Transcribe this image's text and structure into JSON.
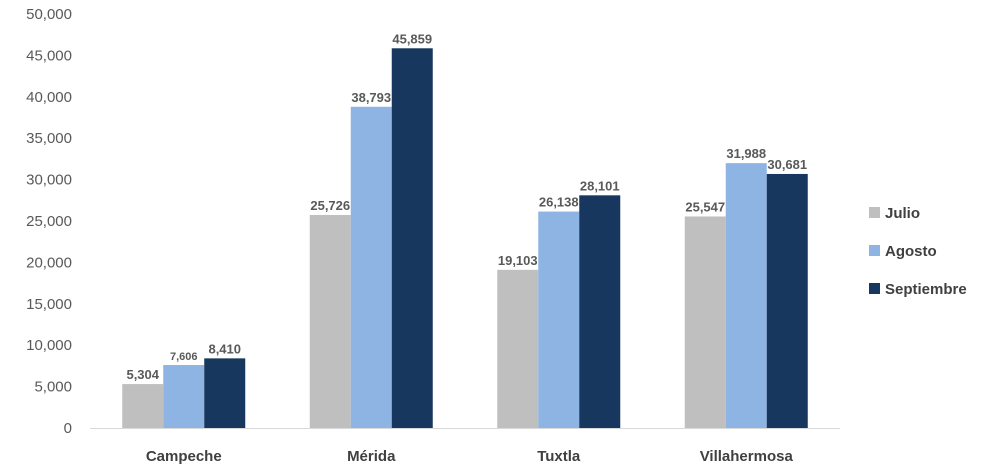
{
  "chart_data": {
    "type": "bar",
    "title": "",
    "xlabel": "",
    "ylabel": "",
    "categories": [
      "Campeche",
      "Mérida",
      "Tuxtla",
      "Villahermosa"
    ],
    "series": [
      {
        "name": "Julio",
        "values": [
          5304,
          25726,
          19103,
          25547
        ],
        "labels": [
          "5,304",
          "25,726",
          "19,103",
          "25,547"
        ],
        "color": "#bfbfbf"
      },
      {
        "name": "Agosto",
        "values": [
          7606,
          38793,
          26138,
          31988
        ],
        "labels": [
          "7,606",
          "38,793",
          "26,138",
          "31,988"
        ],
        "color": "#8eb4e3"
      },
      {
        "name": "Septiembre",
        "values": [
          8410,
          45859,
          28101,
          30681
        ],
        "labels": [
          "8,410",
          "45,859",
          "28,101",
          "30,681"
        ],
        "color": "#17375e"
      }
    ],
    "ylim": [
      0,
      50000
    ],
    "yticks": [
      0,
      5000,
      10000,
      15000,
      20000,
      25000,
      30000,
      35000,
      40000,
      45000,
      50000
    ],
    "ytick_labels": [
      "0",
      "5,000",
      "10,000",
      "15,000",
      "20,000",
      "25,000",
      "30,000",
      "35,000",
      "40,000",
      "45,000",
      "50,000"
    ],
    "grid": false,
    "legend": "right"
  }
}
